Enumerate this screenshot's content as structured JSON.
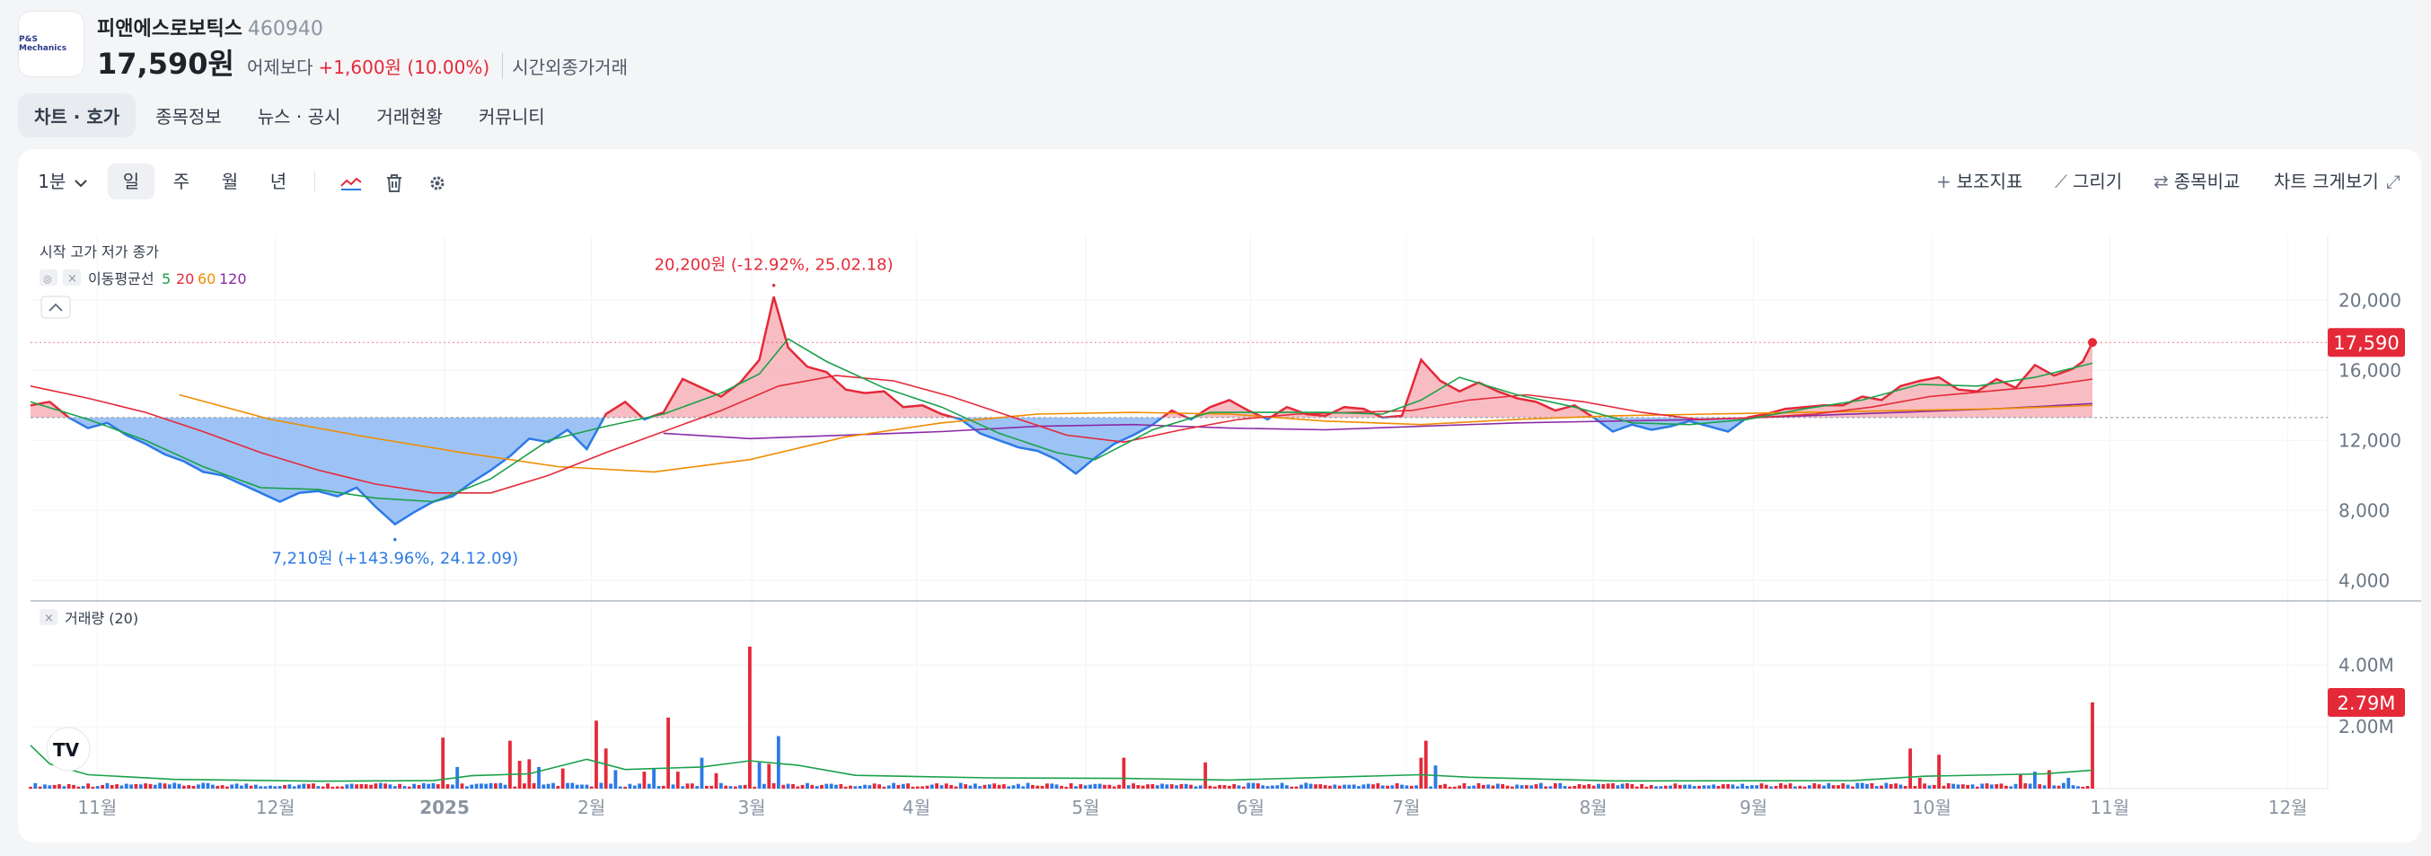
{
  "stock": {
    "logo_text": "P&S Mechanics",
    "name": "피앤에스로보틱스",
    "code": "460940",
    "price": "17,590원",
    "vs_label": "어제보다",
    "change": "+1,600원 (10.00%)",
    "after_hours": "시간외종가거래"
  },
  "tabs": [
    "차트 · 호가",
    "종목정보",
    "뉴스 · 공시",
    "거래현황",
    "커뮤니티"
  ],
  "toolbar": {
    "interval": "1분",
    "periods": [
      "일",
      "주",
      "월",
      "년"
    ],
    "active_period": "일",
    "indicator": "보조지표",
    "draw": "그리기",
    "compare": "종목비교",
    "fullscreen": "차트 크게보기"
  },
  "colors": {
    "up": "#e42939",
    "down": "#2c7ae6",
    "ma5": "#1aa14a",
    "ma20": "#e42939",
    "ma60": "#f08c00",
    "ma120": "#8b2aa6"
  },
  "chart_data": [
    {
      "type": "area",
      "legend_ohlc": "시작 고가 저가 종가",
      "ma_label": "이동평균선",
      "ma_periods": [
        "5",
        "20",
        "60",
        "120"
      ],
      "x_labels": [
        "11월",
        "12월",
        "2025",
        "2월",
        "3월",
        "4월",
        "5월",
        "6월",
        "7월",
        "8월",
        "9월",
        "10월",
        "11월",
        "12월"
      ],
      "y_ticks": [
        "20,000",
        "16,000",
        "12,000",
        "8,000",
        "4,000"
      ],
      "ylim": [
        3500,
        23500
      ],
      "baseline": 13300,
      "last_price_label": "17,590",
      "last_price": 17590,
      "max_annotation": "20,200원 (-12.92%, 25.02.18)",
      "min_annotation": "7,210원 (+143.96%, 24.12.09)",
      "price_series": [
        [
          0,
          14000
        ],
        [
          4,
          14200
        ],
        [
          8,
          13300
        ],
        [
          12,
          12700
        ],
        [
          16,
          13000
        ],
        [
          20,
          12300
        ],
        [
          24,
          11800
        ],
        [
          28,
          11200
        ],
        [
          32,
          10800
        ],
        [
          36,
          10200
        ],
        [
          40,
          10000
        ],
        [
          44,
          9500
        ],
        [
          48,
          9000
        ],
        [
          52,
          8500
        ],
        [
          56,
          9000
        ],
        [
          60,
          9100
        ],
        [
          64,
          8800
        ],
        [
          68,
          9300
        ],
        [
          72,
          8200
        ],
        [
          76,
          7210
        ],
        [
          80,
          7900
        ],
        [
          84,
          8500
        ],
        [
          88,
          8800
        ],
        [
          92,
          9600
        ],
        [
          96,
          10300
        ],
        [
          100,
          11100
        ],
        [
          104,
          12100
        ],
        [
          108,
          11900
        ],
        [
          112,
          12600
        ],
        [
          116,
          11500
        ],
        [
          120,
          13500
        ],
        [
          124,
          14200
        ],
        [
          128,
          13200
        ],
        [
          132,
          13600
        ],
        [
          136,
          15500
        ],
        [
          140,
          15000
        ],
        [
          144,
          14500
        ],
        [
          148,
          15300
        ],
        [
          152,
          16600
        ],
        [
          155,
          20200
        ],
        [
          158,
          17300
        ],
        [
          162,
          16200
        ],
        [
          166,
          15900
        ],
        [
          170,
          14900
        ],
        [
          174,
          14700
        ],
        [
          178,
          14800
        ],
        [
          182,
          13900
        ],
        [
          186,
          14000
        ],
        [
          190,
          13500
        ],
        [
          194,
          13200
        ],
        [
          198,
          12400
        ],
        [
          202,
          12000
        ],
        [
          206,
          11600
        ],
        [
          210,
          11400
        ],
        [
          214,
          10900
        ],
        [
          218,
          10100
        ],
        [
          222,
          11000
        ],
        [
          226,
          11800
        ],
        [
          230,
          12300
        ],
        [
          234,
          12900
        ],
        [
          238,
          13700
        ],
        [
          242,
          13200
        ],
        [
          246,
          13900
        ],
        [
          250,
          14300
        ],
        [
          254,
          13700
        ],
        [
          258,
          13200
        ],
        [
          262,
          13900
        ],
        [
          266,
          13500
        ],
        [
          270,
          13400
        ],
        [
          274,
          13900
        ],
        [
          278,
          13800
        ],
        [
          282,
          13300
        ],
        [
          286,
          13400
        ],
        [
          290,
          16600
        ],
        [
          294,
          15400
        ],
        [
          298,
          14800
        ],
        [
          302,
          15300
        ],
        [
          306,
          14800
        ],
        [
          310,
          14400
        ],
        [
          314,
          14200
        ],
        [
          318,
          13700
        ],
        [
          322,
          14000
        ],
        [
          326,
          13300
        ],
        [
          330,
          12500
        ],
        [
          334,
          12900
        ],
        [
          338,
          12600
        ],
        [
          342,
          12800
        ],
        [
          346,
          13100
        ],
        [
          350,
          12800
        ],
        [
          354,
          12500
        ],
        [
          358,
          13300
        ],
        [
          362,
          13500
        ],
        [
          366,
          13800
        ],
        [
          370,
          13900
        ],
        [
          374,
          14000
        ],
        [
          378,
          14000
        ],
        [
          382,
          14500
        ],
        [
          386,
          14300
        ],
        [
          390,
          15100
        ],
        [
          394,
          15400
        ],
        [
          398,
          15600
        ],
        [
          402,
          14900
        ],
        [
          406,
          14800
        ],
        [
          410,
          15500
        ],
        [
          414,
          15000
        ],
        [
          418,
          16300
        ],
        [
          422,
          15700
        ],
        [
          426,
          16100
        ],
        [
          428,
          16500
        ],
        [
          430,
          17590
        ]
      ],
      "ma5": [
        [
          0,
          14200
        ],
        [
          12,
          13200
        ],
        [
          24,
          12000
        ],
        [
          36,
          10500
        ],
        [
          48,
          9300
        ],
        [
          60,
          9200
        ],
        [
          72,
          8700
        ],
        [
          84,
          8500
        ],
        [
          96,
          9800
        ],
        [
          108,
          12000
        ],
        [
          120,
          12800
        ],
        [
          132,
          13500
        ],
        [
          144,
          14700
        ],
        [
          152,
          15800
        ],
        [
          158,
          17800
        ],
        [
          166,
          16500
        ],
        [
          178,
          15000
        ],
        [
          190,
          13900
        ],
        [
          202,
          12400
        ],
        [
          214,
          11300
        ],
        [
          222,
          10900
        ],
        [
          234,
          12600
        ],
        [
          246,
          13600
        ],
        [
          258,
          13600
        ],
        [
          270,
          13600
        ],
        [
          282,
          13500
        ],
        [
          290,
          14300
        ],
        [
          298,
          15600
        ],
        [
          310,
          14600
        ],
        [
          322,
          13900
        ],
        [
          334,
          13000
        ],
        [
          346,
          12900
        ],
        [
          358,
          13200
        ],
        [
          370,
          13800
        ],
        [
          382,
          14300
        ],
        [
          394,
          15200
        ],
        [
          406,
          15100
        ],
        [
          418,
          15600
        ],
        [
          430,
          16400
        ]
      ],
      "ma20": [
        [
          0,
          15100
        ],
        [
          12,
          14400
        ],
        [
          24,
          13600
        ],
        [
          36,
          12500
        ],
        [
          48,
          11300
        ],
        [
          60,
          10300
        ],
        [
          72,
          9500
        ],
        [
          84,
          9000
        ],
        [
          96,
          9000
        ],
        [
          108,
          10000
        ],
        [
          120,
          11300
        ],
        [
          132,
          12500
        ],
        [
          144,
          13700
        ],
        [
          156,
          15100
        ],
        [
          168,
          15700
        ],
        [
          180,
          15400
        ],
        [
          192,
          14500
        ],
        [
          204,
          13400
        ],
        [
          216,
          12300
        ],
        [
          228,
          11900
        ],
        [
          240,
          12600
        ],
        [
          252,
          13200
        ],
        [
          264,
          13500
        ],
        [
          276,
          13600
        ],
        [
          288,
          13700
        ],
        [
          300,
          14300
        ],
        [
          312,
          14600
        ],
        [
          324,
          14200
        ],
        [
          336,
          13600
        ],
        [
          348,
          13200
        ],
        [
          360,
          13300
        ],
        [
          372,
          13500
        ],
        [
          384,
          13900
        ],
        [
          396,
          14500
        ],
        [
          408,
          14800
        ],
        [
          420,
          15100
        ],
        [
          430,
          15500
        ]
      ],
      "ma60": [
        [
          31,
          14600
        ],
        [
          50,
          13200
        ],
        [
          70,
          12200
        ],
        [
          90,
          11300
        ],
        [
          110,
          10500
        ],
        [
          130,
          10200
        ],
        [
          150,
          10900
        ],
        [
          170,
          12200
        ],
        [
          190,
          13000
        ],
        [
          210,
          13500
        ],
        [
          230,
          13600
        ],
        [
          250,
          13500
        ],
        [
          270,
          13100
        ],
        [
          290,
          12900
        ],
        [
          310,
          13200
        ],
        [
          330,
          13400
        ],
        [
          350,
          13500
        ],
        [
          370,
          13600
        ],
        [
          390,
          13700
        ],
        [
          410,
          13800
        ],
        [
          430,
          14000
        ]
      ],
      "ma120": [
        [
          132,
          12400
        ],
        [
          150,
          12100
        ],
        [
          170,
          12300
        ],
        [
          190,
          12500
        ],
        [
          210,
          12800
        ],
        [
          230,
          12900
        ],
        [
          250,
          12700
        ],
        [
          270,
          12600
        ],
        [
          290,
          12800
        ],
        [
          310,
          13000
        ],
        [
          330,
          13100
        ],
        [
          350,
          13200
        ],
        [
          370,
          13400
        ],
        [
          390,
          13600
        ],
        [
          410,
          13800
        ],
        [
          430,
          14100
        ]
      ]
    },
    {
      "type": "bar",
      "legend": "거래량 (20)",
      "y_ticks": [
        "4.00M",
        "2.00M"
      ],
      "ylim": [
        0,
        5000000
      ],
      "last_volume_label": "2.79M",
      "volume_spikes": [
        [
          86,
          1650000,
          "up"
        ],
        [
          89,
          700000,
          "down"
        ],
        [
          100,
          1550000,
          "up"
        ],
        [
          102,
          900000,
          "up"
        ],
        [
          104,
          950000,
          "up"
        ],
        [
          106,
          700000,
          "down"
        ],
        [
          111,
          650000,
          "up"
        ],
        [
          118,
          2200000,
          "up"
        ],
        [
          120,
          1300000,
          "up"
        ],
        [
          122,
          600000,
          "down"
        ],
        [
          128,
          550000,
          "up"
        ],
        [
          130,
          650000,
          "down"
        ],
        [
          133,
          2300000,
          "up"
        ],
        [
          135,
          550000,
          "up"
        ],
        [
          140,
          1000000,
          "down"
        ],
        [
          143,
          500000,
          "up"
        ],
        [
          150,
          4600000,
          "up"
        ],
        [
          152,
          850000,
          "down"
        ],
        [
          154,
          800000,
          "up"
        ],
        [
          156,
          1700000,
          "down"
        ],
        [
          228,
          1000000,
          "up"
        ],
        [
          245,
          850000,
          "up"
        ],
        [
          290,
          1000000,
          "up"
        ],
        [
          291,
          1550000,
          "up"
        ],
        [
          293,
          750000,
          "down"
        ],
        [
          392,
          1300000,
          "up"
        ],
        [
          394,
          350000,
          "up"
        ],
        [
          398,
          1100000,
          "up"
        ],
        [
          415,
          450000,
          "up"
        ],
        [
          418,
          550000,
          "down"
        ],
        [
          421,
          600000,
          "up"
        ],
        [
          425,
          350000,
          "down"
        ],
        [
          430,
          2790000,
          "up"
        ]
      ],
      "ma20": [
        [
          0,
          1400000
        ],
        [
          4,
          800000
        ],
        [
          12,
          450000
        ],
        [
          30,
          300000
        ],
        [
          60,
          240000
        ],
        [
          84,
          260000
        ],
        [
          92,
          420000
        ],
        [
          104,
          480000
        ],
        [
          116,
          950000
        ],
        [
          124,
          620000
        ],
        [
          140,
          700000
        ],
        [
          150,
          900000
        ],
        [
          160,
          760000
        ],
        [
          172,
          430000
        ],
        [
          200,
          350000
        ],
        [
          228,
          330000
        ],
        [
          250,
          280000
        ],
        [
          290,
          450000
        ],
        [
          300,
          370000
        ],
        [
          330,
          250000
        ],
        [
          380,
          260000
        ],
        [
          395,
          400000
        ],
        [
          420,
          480000
        ],
        [
          430,
          600000
        ]
      ]
    }
  ]
}
